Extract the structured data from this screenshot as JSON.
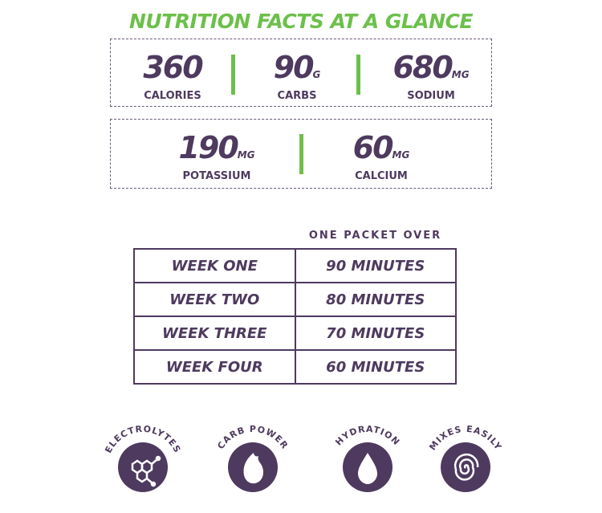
{
  "title": "NUTRITION FACTS AT A GLANCE",
  "row1": [
    {
      "value": "360",
      "unit": "",
      "label": "CALORIES"
    },
    {
      "value": "90",
      "unit": "G",
      "label": "CARBS"
    },
    {
      "value": "680",
      "unit": "MG",
      "label": "SODIUM"
    }
  ],
  "row2": [
    {
      "value": "190",
      "unit": "MG",
      "label": "POTASSIUM"
    },
    {
      "value": "60",
      "unit": "MG",
      "label": "CALCIUM"
    }
  ],
  "schedule": {
    "header": "ONE PACKET OVER",
    "rows": [
      [
        "WEEK ONE",
        "90 MINUTES"
      ],
      [
        "WEEK TWO",
        "80 MINUTES"
      ],
      [
        "WEEK THREE",
        "70 MINUTES"
      ],
      [
        "WEEK FOUR",
        "60 MINUTES"
      ]
    ]
  },
  "badges": [
    {
      "label": "ELECTROLYTES",
      "icon": "molecule-icon"
    },
    {
      "label": "CARB POWER",
      "icon": "flame-icon"
    },
    {
      "label": "HYDRATION",
      "icon": "drop-icon"
    },
    {
      "label": "MIXES EASILY",
      "icon": "spiral-icon"
    }
  ],
  "colors": {
    "purple": "#4e3a5f",
    "green": "#6cc04a"
  }
}
